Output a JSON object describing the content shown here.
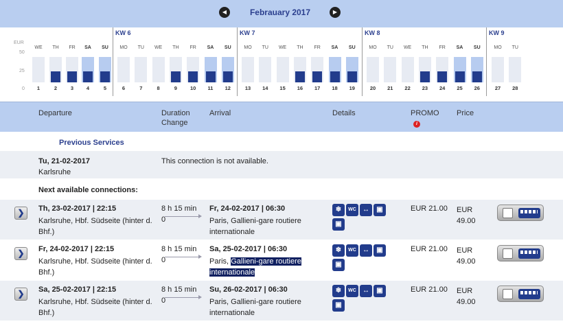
{
  "month": {
    "title": "Febrauary 2017",
    "prev_icon": "◀",
    "next_icon": "▶"
  },
  "calendar": {
    "unit": "EUR",
    "y_ticks": [
      "50",
      "25",
      "0"
    ],
    "weeks": [
      "KW 6",
      "KW 7",
      "KW 8",
      "KW 9"
    ],
    "days": [
      {
        "name": "WE",
        "num": "1",
        "weekend": false,
        "available": false
      },
      {
        "name": "TH",
        "num": "2",
        "weekend": false,
        "available": true
      },
      {
        "name": "FR",
        "num": "3",
        "weekend": false,
        "available": true
      },
      {
        "name": "SA",
        "num": "4",
        "weekend": true,
        "available": true
      },
      {
        "name": "SU",
        "num": "5",
        "weekend": true,
        "available": true
      },
      {
        "name": "MO",
        "num": "6",
        "weekend": false,
        "available": false
      },
      {
        "name": "TU",
        "num": "7",
        "weekend": false,
        "available": false
      },
      {
        "name": "WE",
        "num": "8",
        "weekend": false,
        "available": false
      },
      {
        "name": "TH",
        "num": "9",
        "weekend": false,
        "available": true
      },
      {
        "name": "FR",
        "num": "10",
        "weekend": false,
        "available": true
      },
      {
        "name": "SA",
        "num": "11",
        "weekend": true,
        "available": true
      },
      {
        "name": "SU",
        "num": "12",
        "weekend": true,
        "available": true
      },
      {
        "name": "MO",
        "num": "13",
        "weekend": false,
        "available": false
      },
      {
        "name": "TU",
        "num": "14",
        "weekend": false,
        "available": false
      },
      {
        "name": "WE",
        "num": "15",
        "weekend": false,
        "available": false
      },
      {
        "name": "TH",
        "num": "16",
        "weekend": false,
        "available": true
      },
      {
        "name": "FR",
        "num": "17",
        "weekend": false,
        "available": true
      },
      {
        "name": "SA",
        "num": "18",
        "weekend": true,
        "available": true
      },
      {
        "name": "SU",
        "num": "19",
        "weekend": true,
        "available": true
      },
      {
        "name": "MO",
        "num": "20",
        "weekend": false,
        "available": false
      },
      {
        "name": "TU",
        "num": "21",
        "weekend": false,
        "available": false
      },
      {
        "name": "WE",
        "num": "22",
        "weekend": false,
        "available": false
      },
      {
        "name": "TH",
        "num": "23",
        "weekend": false,
        "available": true
      },
      {
        "name": "FR",
        "num": "24",
        "weekend": false,
        "available": true
      },
      {
        "name": "SA",
        "num": "25",
        "weekend": true,
        "available": true
      },
      {
        "name": "SU",
        "num": "26",
        "weekend": true,
        "available": true
      },
      {
        "name": "MO",
        "num": "27",
        "weekend": false,
        "available": false
      },
      {
        "name": "TU",
        "num": "28",
        "weekend": false,
        "available": false
      }
    ]
  },
  "results_header": {
    "departure": "Departure",
    "duration": "Duration",
    "change": "Change",
    "arrival": "Arrival",
    "details": "Details",
    "promo": "PROMO",
    "promo_info": "i",
    "price": "Price"
  },
  "previous_services": "Previous Services",
  "unavailable": {
    "date": "Tu, 21-02-2017",
    "city": "Karlsruhe",
    "message": "This connection is not available."
  },
  "next_label": "Next available connections:",
  "connections": [
    {
      "dep_time": "Th, 23-02-2017 | 22:15",
      "dep_stop": "Karlsruhe, Hbf. Südseite (hinter d. Bhf.)",
      "duration": "8 h 15 min",
      "changes": "0",
      "arr_time": "Fr, 24-02-2017 | 06:30",
      "arr_stop_plain": "Paris, Gallieni-gare routiere internationale",
      "arr_stop_hl": "",
      "promo": "EUR 21.00",
      "price_cur": "EUR",
      "price_val": "49.00"
    },
    {
      "dep_time": "Fr, 24-02-2017 | 22:15",
      "dep_stop": "Karlsruhe, Hbf. Südseite (hinter d. Bhf.)",
      "duration": "8 h 15 min",
      "changes": "0",
      "arr_time": "Sa, 25-02-2017 | 06:30",
      "arr_stop_plain": "Paris, ",
      "arr_stop_hl": "Gallieni-gare routiere internationale",
      "promo": "EUR 21.00",
      "price_cur": "EUR",
      "price_val": "49.00"
    },
    {
      "dep_time": "Sa, 25-02-2017 | 22:15",
      "dep_stop": "Karlsruhe, Hbf. Südseite (hinter d. Bhf.)",
      "duration": "8 h 15 min",
      "changes": "0",
      "arr_time": "Su, 26-02-2017 | 06:30",
      "arr_stop_plain": "Paris, Gallieni-gare routiere internationale",
      "arr_stop_hl": "",
      "promo": "EUR 21.00",
      "price_cur": "EUR",
      "price_val": "49.00"
    }
  ],
  "detail_icons": {
    "ac": "❄",
    "wc": "WC",
    "legroom": "↔",
    "luggage_a": "▣",
    "luggage_b": "▣"
  },
  "row_icons": {
    "expand": "❯"
  }
}
